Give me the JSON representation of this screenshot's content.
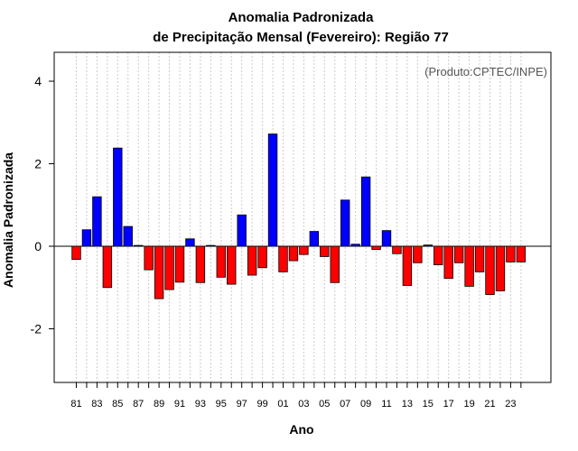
{
  "chart_data": {
    "type": "bar",
    "title": "Anomalia Padronizada",
    "subtitle": "de Precipitação Mensal (Fevereiro): Região 77",
    "xlabel": "Ano",
    "ylabel": "Anomalia Padronizada",
    "annotation": "(Produto:CPTEC/INPE)",
    "ylim": [
      -3.3,
      4.7
    ],
    "yticks": [
      -2,
      0,
      2,
      4
    ],
    "grid": "vertical dotted",
    "colors": {
      "positive": "#0000ff",
      "negative": "#ff0000",
      "zero_line": "#000000",
      "grid": "#cccccc"
    },
    "categories": [
      "1981",
      "1982",
      "1983",
      "1984",
      "1985",
      "1986",
      "1987",
      "1988",
      "1989",
      "1990",
      "1991",
      "1992",
      "1993",
      "1994",
      "1995",
      "1996",
      "1997",
      "1998",
      "1999",
      "2000",
      "2001",
      "2002",
      "2003",
      "2004",
      "2005",
      "2006",
      "2007",
      "2008",
      "2009",
      "2010",
      "2011",
      "2012",
      "2013",
      "2014",
      "2015",
      "2016",
      "2017",
      "2018",
      "2019",
      "2020",
      "2021",
      "2022",
      "2023",
      "2024"
    ],
    "tick_labels": [
      "81",
      "",
      "83",
      "",
      "85",
      "",
      "87",
      "",
      "89",
      "",
      "91",
      "",
      "93",
      "",
      "95",
      "",
      "97",
      "",
      "99",
      "",
      "01",
      "",
      "03",
      "",
      "05",
      "",
      "07",
      "",
      "09",
      "",
      "11",
      "",
      "13",
      "",
      "15",
      "",
      "17",
      "",
      "19",
      "",
      "21",
      "",
      "23",
      ""
    ],
    "values": [
      -0.32,
      0.4,
      1.2,
      -1.0,
      2.38,
      0.48,
      0.02,
      -0.57,
      -1.27,
      -1.05,
      -0.87,
      0.18,
      -0.88,
      0.02,
      -0.75,
      -0.92,
      0.76,
      -0.7,
      -0.52,
      2.72,
      -0.62,
      -0.35,
      -0.2,
      0.36,
      -0.25,
      -0.88,
      1.12,
      0.05,
      1.68,
      -0.08,
      0.38,
      -0.18,
      -0.95,
      -0.4,
      0.03,
      -0.45,
      -0.78,
      -0.4,
      -0.97,
      -0.62,
      -1.17,
      -1.08,
      -0.38,
      -0.38
    ]
  }
}
